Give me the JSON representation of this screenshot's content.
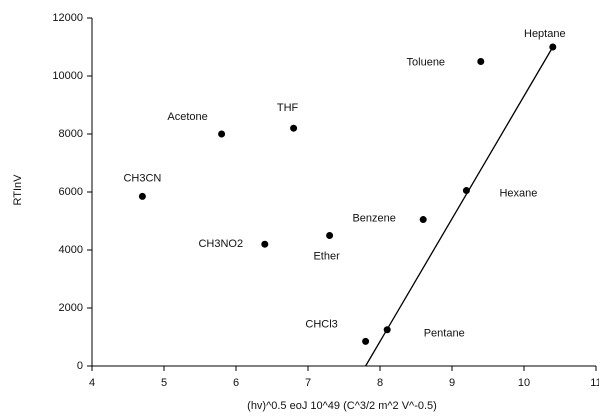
{
  "chart_data": {
    "type": "scatter",
    "x_label": "(hv)^0.5 eoJ 10^49 (C^3/2 m^2 V^-0.5)",
    "y_label": "RTInV",
    "xlim": [
      4,
      11
    ],
    "xticks": [
      4,
      5,
      6,
      7,
      8,
      9,
      10,
      11
    ],
    "ylim": [
      0,
      12000
    ],
    "yticks": [
      0,
      2000,
      4000,
      6000,
      8000,
      10000,
      12000
    ],
    "series": [
      {
        "mode": "markers",
        "color": "#000000",
        "labels": [
          "CH3CN",
          "Acetone",
          "THF",
          "CH3NO2",
          "Ether",
          "Benzene",
          "Toluene",
          "Heptane",
          "Hexane",
          "Pentane",
          "CHCl3"
        ],
        "x": [
          4.7,
          5.8,
          6.8,
          6.4,
          7.3,
          8.6,
          9.4,
          10.4,
          9.2,
          8.1,
          7.8
        ],
        "values": [
          5850,
          8000,
          8200,
          4200,
          4500,
          5050,
          10500,
          11000,
          6050,
          1250,
          850
        ]
      },
      {
        "mode": "line",
        "color": "#000000",
        "x": [
          7.8,
          10.4
        ],
        "values": [
          0,
          11000
        ]
      }
    ]
  }
}
